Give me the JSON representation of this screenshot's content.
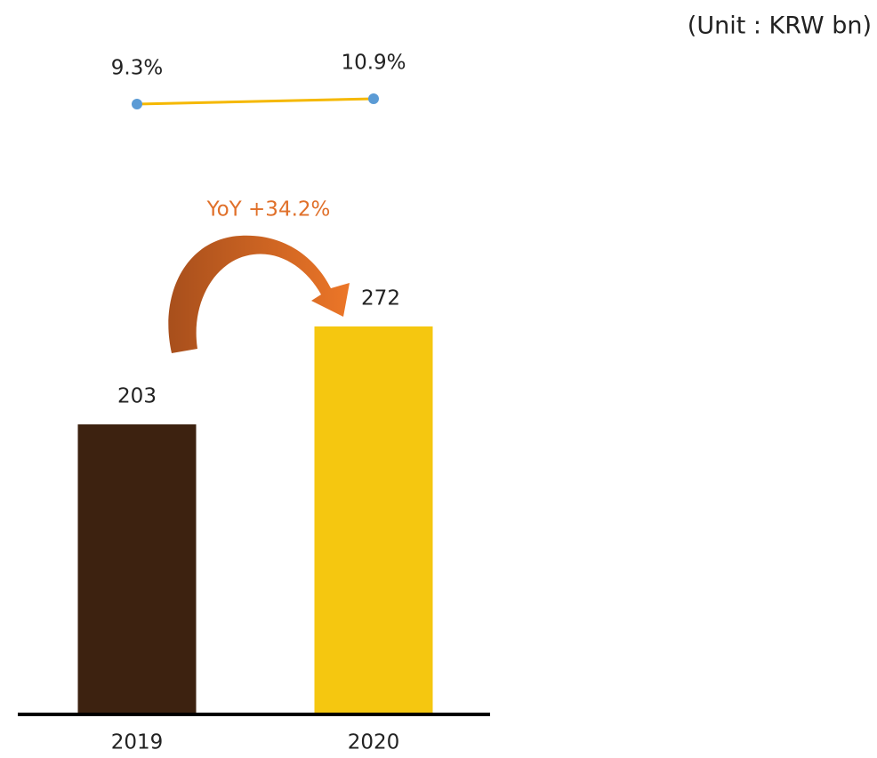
{
  "chart_data": {
    "type": "bar",
    "unit_label": "(Unit : KRW bn)",
    "annotation": "YoY +34.2%",
    "categories": [
      "2019",
      "2020"
    ],
    "values": [
      203,
      272
    ],
    "colors": [
      "#3d2210",
      "#f5c710"
    ],
    "line": {
      "values": [
        9.3,
        10.9
      ],
      "value_labels": [
        "9.3%",
        "10.9%"
      ],
      "color": "#f5b800",
      "marker_color": "#5b9bd5"
    }
  }
}
